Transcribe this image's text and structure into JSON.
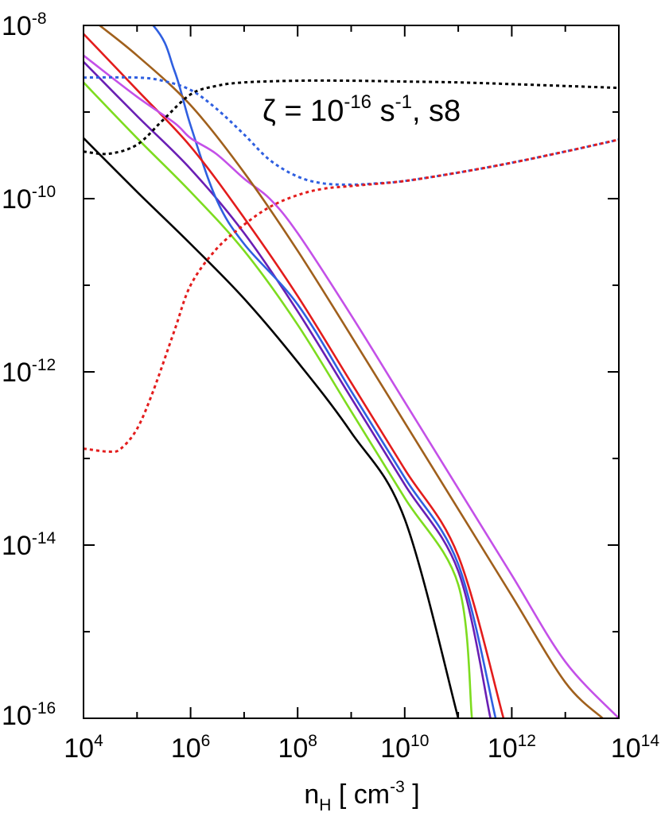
{
  "chart_data": {
    "type": "line",
    "title": "",
    "x_scale": "log",
    "y_scale": "log",
    "xlim": [
      10000.0,
      100000000000000.0
    ],
    "ylim": [
      1e-16,
      1e-08
    ],
    "grid": false,
    "legend": "none",
    "x_ticks": [
      {
        "base": "10",
        "exp": "4"
      },
      {
        "base": "10",
        "exp": "6"
      },
      {
        "base": "10",
        "exp": "8"
      },
      {
        "base": "10",
        "exp": "10"
      },
      {
        "base": "10",
        "exp": "12"
      },
      {
        "base": "10",
        "exp": "14"
      }
    ],
    "y_ticks": [
      {
        "base": "10",
        "exp": "-8"
      },
      {
        "base": "10",
        "exp": "-10"
      },
      {
        "base": "10",
        "exp": "-12"
      },
      {
        "base": "10",
        "exp": "-14"
      },
      {
        "base": "10",
        "exp": "-16"
      }
    ],
    "xlabel": {
      "main": "n",
      "sub": "H",
      "open": " [ cm",
      "sup": "-3",
      "close": " ]"
    },
    "annotation": {
      "zeta": "ζ = 10",
      "exp1": "-16",
      "unit": " s",
      "exp2": "-1",
      "rest": ", s8"
    },
    "series": [
      {
        "color": "#000000",
        "style": "solid",
        "x": [
          10000.0,
          100000.0,
          1000000.0,
          10000000.0,
          100000000.0,
          1000000000.0,
          10000000000.0,
          100000000000.0
        ],
        "y": [
          5e-10,
          1.2e-10,
          3e-11,
          7e-12,
          1.3e-12,
          2e-13,
          2e-14,
          1e-16
        ]
      },
      {
        "color": "#7ddc1f",
        "style": "solid",
        "x": [
          10000.0,
          100000.0,
          1000000.0,
          10000000.0,
          100000000.0,
          1000000000.0,
          10000000000.0,
          100000000000.0,
          180000000000.0
        ],
        "y": [
          2.2e-09,
          5e-10,
          1.2e-10,
          2.5e-11,
          3.5e-12,
          3.5e-13,
          3.5e-14,
          3.5e-15,
          1e-16
        ]
      },
      {
        "color": "#6a1eb4",
        "style": "solid",
        "x": [
          10000.0,
          100000.0,
          1000000.0,
          10000000.0,
          100000000.0,
          1000000000.0,
          10000000000.0,
          100000000000.0,
          400000000000.0
        ],
        "y": [
          3.8e-09,
          9e-10,
          2.2e-10,
          4e-11,
          5e-12,
          5e-13,
          5e-14,
          5e-15,
          1e-16
        ]
      },
      {
        "color": "#2f5fe0",
        "style": "solid",
        "x": [
          10000.0,
          200000.0,
          500000.0,
          1000000.0,
          3000000.0,
          10000000.0,
          100000000.0,
          1000000000.0,
          10000000000.0,
          100000000000.0,
          500000000000.0
        ],
        "y": [
          5e-08,
          1e-08,
          3e-09,
          7e-10,
          1e-10,
          3e-11,
          6e-12,
          6e-13,
          6e-14,
          6e-15,
          1e-16
        ]
      },
      {
        "color": "#e31c1c",
        "style": "solid",
        "x": [
          10000.0,
          100000.0,
          1000000.0,
          10000000.0,
          100000000.0,
          1000000000.0,
          10000000000.0,
          100000000000.0,
          700000000000.0
        ],
        "y": [
          8e-09,
          1.8e-09,
          4e-10,
          6e-11,
          7.5e-12,
          7.5e-13,
          7.5e-14,
          7.5e-15,
          1e-16
        ]
      },
      {
        "color": "#c450e8",
        "style": "solid",
        "x": [
          10000.0,
          100000.0,
          500000.0,
          1000000.0,
          3000000.0,
          10000000.0,
          30000000.0,
          100000000.0,
          1000000000.0,
          10000000000.0,
          100000000000.0,
          1000000000000.0,
          10000000000000.0,
          100000000000000.0
        ],
        "y": [
          4.5e-09,
          1.5e-09,
          7.5e-10,
          5e-10,
          3.3e-10,
          1.7e-10,
          1e-10,
          4e-11,
          4.5e-12,
          4.5e-13,
          4.5e-14,
          4.5e-15,
          4.5e-16,
          1e-16
        ]
      },
      {
        "color": "#a0601c",
        "style": "solid",
        "x": [
          20000.0,
          100000.0,
          1000000.0,
          10000000.0,
          100000000.0,
          1000000000.0,
          10000000000.0,
          100000000000.0,
          1000000000000.0,
          10000000000000.0,
          50000000000000.0
        ],
        "y": [
          1e-08,
          4.5e-09,
          1.2e-09,
          2e-10,
          2.5e-11,
          2.6e-12,
          2.6e-13,
          2.6e-14,
          2.6e-15,
          2.6e-16,
          1e-16
        ]
      },
      {
        "color": "#000000",
        "style": "dotted",
        "x": [
          10000.0,
          30000.0,
          100000.0,
          300000.0,
          1000000.0,
          3000000.0,
          10000000.0,
          100000000.0,
          1000000000.0,
          10000000000.0,
          100000000000.0,
          1000000000000.0,
          10000000000000.0,
          100000000000000.0
        ],
        "y": [
          3.5e-10,
          3.3e-10,
          4.2e-10,
          8e-10,
          1.6e-09,
          2e-09,
          2.2e-09,
          2.3e-09,
          2.3e-09,
          2.25e-09,
          2.2e-09,
          2.1e-09,
          2e-09,
          1.9e-09
        ]
      },
      {
        "color": "#2f5fe0",
        "style": "dotted",
        "x": [
          10000.0,
          100000.0,
          300000.0,
          1000000.0,
          3000000.0,
          10000000.0,
          30000000.0,
          100000000.0,
          300000000.0,
          1000000000.0,
          3000000000.0,
          10000000000.0,
          100000000000.0,
          1000000000000.0,
          10000000000000.0,
          100000000000000.0
        ],
        "y": [
          2.5e-09,
          2.5e-09,
          2.3e-09,
          1.8e-09,
          1.1e-09,
          5.5e-10,
          2.8e-10,
          1.8e-10,
          1.5e-10,
          1.45e-10,
          1.5e-10,
          1.6e-10,
          2e-10,
          2.6e-10,
          3.5e-10,
          4.8e-10
        ]
      },
      {
        "color": "#e31c1c",
        "style": "dotted",
        "x": [
          10000.0,
          30000.0,
          50000.0,
          100000.0,
          200000.0,
          500000.0,
          1000000.0,
          3000000.0,
          10000000.0,
          30000000.0,
          100000000.0,
          300000000.0,
          1000000000.0,
          10000000000.0,
          100000000000.0,
          1000000000000.0,
          10000000000000.0,
          100000000000000.0
        ],
        "y": [
          1.3e-13,
          1.2e-13,
          1.3e-13,
          2.2e-13,
          6e-13,
          3e-12,
          1e-11,
          2.6e-11,
          5e-11,
          8e-11,
          1.1e-10,
          1.3e-10,
          1.4e-10,
          1.6e-10,
          2e-10,
          2.6e-10,
          3.5e-10,
          4.8e-10
        ]
      }
    ]
  }
}
